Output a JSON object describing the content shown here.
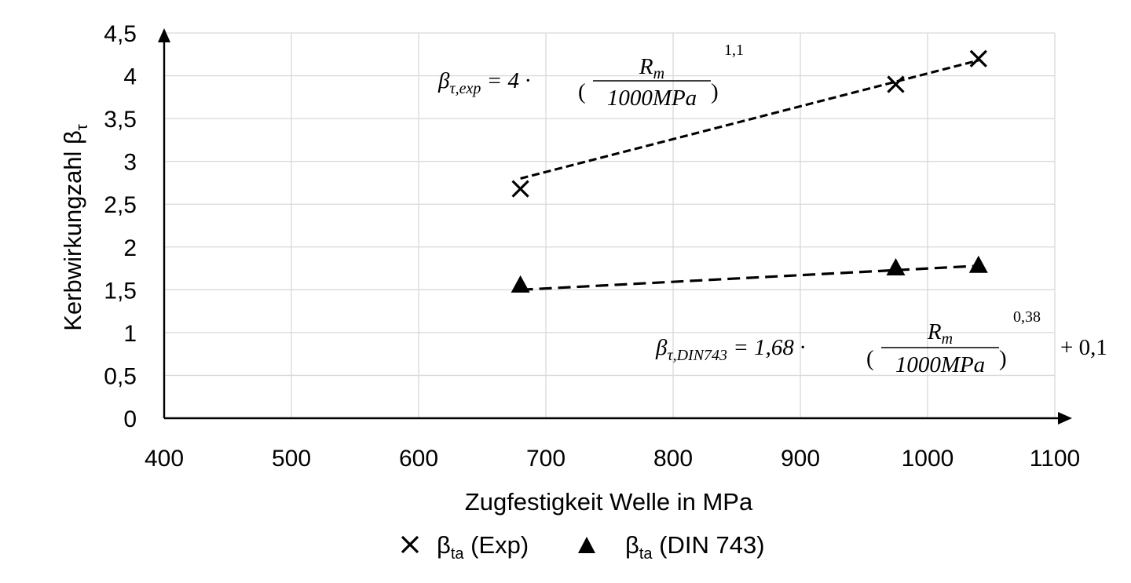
{
  "chart_data": {
    "type": "scatter",
    "title": "",
    "xlabel": "Zugfestigkeit Welle in MPa",
    "ylabel": "Kerbwirkungzahl β",
    "ylabel_subscript": "τ",
    "xlim": [
      400,
      1100
    ],
    "ylim": [
      0,
      4.5
    ],
    "x_ticks": [
      400,
      500,
      600,
      700,
      800,
      900,
      1000,
      1100
    ],
    "y_ticks": [
      0,
      0.5,
      1,
      1.5,
      2,
      2.5,
      3,
      3.5,
      4,
      4.5
    ],
    "x_tick_labels": [
      "400",
      "500",
      "600",
      "700",
      "800",
      "900",
      "1000",
      "1100"
    ],
    "y_tick_labels": [
      "0",
      "0,5",
      "1",
      "1,5",
      "2",
      "2,5",
      "3",
      "3,5",
      "4",
      "4,5"
    ],
    "grid": true,
    "legend_position": "bottom",
    "series": [
      {
        "name": "β",
        "name_subscript": "ta",
        "name_suffix": " (Exp)",
        "marker": "x",
        "x": [
          680,
          975,
          1040
        ],
        "y": [
          2.68,
          3.9,
          4.2
        ],
        "trendline": {
          "x": [
            680,
            1040
          ],
          "y": [
            2.8,
            4.18
          ],
          "style": "dashed"
        },
        "formula": {
          "lhs": "β",
          "lhs_sub": "τ,exp",
          "equals": " = 4 · ",
          "numerator": "R",
          "numerator_sub": "m",
          "denominator": "1000MPa",
          "exponent": "1,1",
          "tail": ""
        }
      },
      {
        "name": "β",
        "name_subscript": "ta",
        "name_suffix": " (DIN 743)",
        "marker": "triangle",
        "x": [
          680,
          975,
          1040
        ],
        "y": [
          1.55,
          1.75,
          1.78
        ],
        "trendline": {
          "x": [
            680,
            1040
          ],
          "y": [
            1.5,
            1.78
          ],
          "style": "dashed"
        },
        "formula": {
          "lhs": "β",
          "lhs_sub": "τ,DIN743",
          "equals": " = 1,68 · ",
          "numerator": "R",
          "numerator_sub": "m",
          "denominator": "1000MPa",
          "exponent": "0,38",
          "tail": "+ 0,1"
        }
      }
    ]
  }
}
